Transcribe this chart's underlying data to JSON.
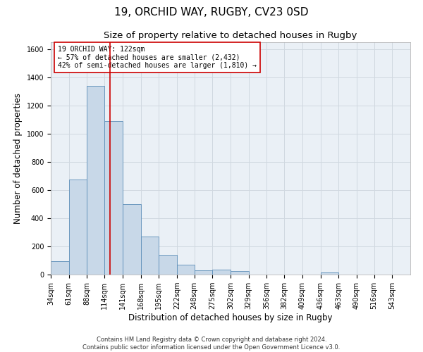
{
  "title1": "19, ORCHID WAY, RUGBY, CV23 0SD",
  "title2": "Size of property relative to detached houses in Rugby",
  "xlabel": "Distribution of detached houses by size in Rugby",
  "ylabel": "Number of detached properties",
  "annotation_line1": "19 ORCHID WAY: 122sqm",
  "annotation_line2": "← 57% of detached houses are smaller (2,432)",
  "annotation_line3": "42% of semi-detached houses are larger (1,810) →",
  "footnote1": "Contains HM Land Registry data © Crown copyright and database right 2024.",
  "footnote2": "Contains public sector information licensed under the Open Government Licence v3.0.",
  "bar_edges": [
    34,
    61,
    88,
    114,
    141,
    168,
    195,
    222,
    248,
    275,
    302,
    329,
    356,
    382,
    409,
    436,
    463,
    490,
    516,
    543,
    570
  ],
  "bar_heights": [
    95,
    675,
    1340,
    1090,
    500,
    270,
    140,
    70,
    30,
    35,
    25,
    0,
    0,
    0,
    0,
    15,
    0,
    0,
    0,
    0
  ],
  "bar_color": "#c8d8e8",
  "bar_edge_color": "#5b8db8",
  "vline_color": "#cc0000",
  "vline_x": 122,
  "ylim": [
    0,
    1650
  ],
  "yticks": [
    0,
    200,
    400,
    600,
    800,
    1000,
    1200,
    1400,
    1600
  ],
  "grid_color": "#d0d8e0",
  "background_color": "#eaf0f6",
  "annotation_box_color": "#ffffff",
  "annotation_box_edge": "#cc0000",
  "title1_fontsize": 11,
  "title2_fontsize": 9.5,
  "tick_fontsize": 7,
  "label_fontsize": 8.5,
  "footnote_fontsize": 6,
  "annotation_fontsize": 7
}
